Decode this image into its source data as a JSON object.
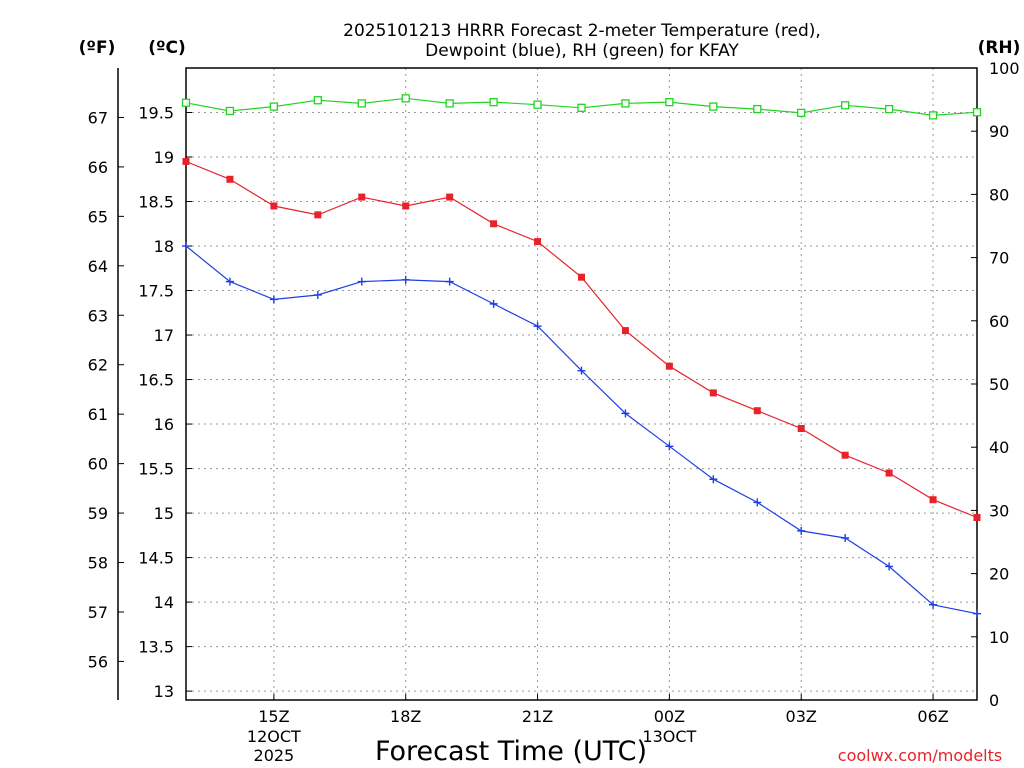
{
  "chart_data": {
    "type": "line",
    "title_lines": [
      "2025101213 HRRR Forecast 2-meter Temperature (red),",
      "Dewpoint (blue), RH (green) for KFAY"
    ],
    "xlabel": "Forecast Time (UTC)",
    "credit": "coolwx.com/modelts",
    "units": {
      "fahrenheit": "(ºF)",
      "celsius": "(ºC)",
      "rh": "(RH)"
    },
    "x_hours": [
      13,
      14,
      15,
      16,
      17,
      18,
      19,
      20,
      21,
      22,
      23,
      24,
      25,
      26,
      27,
      28,
      29,
      30,
      31
    ],
    "xlim": [
      13,
      31
    ],
    "x_ticks": [
      {
        "hour": 15,
        "label": "15Z",
        "line2": "12OCT",
        "line3": "2025"
      },
      {
        "hour": 18,
        "label": "18Z",
        "line2": "",
        "line3": ""
      },
      {
        "hour": 21,
        "label": "21Z",
        "line2": "",
        "line3": ""
      },
      {
        "hour": 24,
        "label": "00Z",
        "line2": "13OCT",
        "line3": ""
      },
      {
        "hour": 27,
        "label": "03Z",
        "line2": "",
        "line3": ""
      },
      {
        "hour": 30,
        "label": "06Z",
        "line2": "",
        "line3": ""
      }
    ],
    "celsius_axis": {
      "ylim": [
        12.9,
        20.0
      ],
      "ticks": [
        13,
        13.5,
        14,
        14.5,
        15,
        15.5,
        16,
        16.5,
        17,
        17.5,
        18,
        18.5,
        19,
        19.5
      ]
    },
    "fahrenheit_ticks": [
      56,
      57,
      58,
      59,
      60,
      61,
      62,
      63,
      64,
      65,
      66,
      67
    ],
    "rh_axis": {
      "ylim": [
        0,
        100
      ],
      "ticks": [
        0,
        10,
        20,
        30,
        40,
        50,
        60,
        70,
        80,
        90,
        100
      ]
    },
    "series": [
      {
        "name": "Temperature",
        "axis": "celsius",
        "color": "#e8222b",
        "marker": "filled-square",
        "values": [
          18.95,
          18.75,
          18.45,
          18.35,
          18.55,
          18.45,
          18.55,
          18.25,
          18.05,
          17.65,
          17.05,
          16.65,
          16.35,
          16.15,
          15.95,
          15.65,
          15.45,
          15.15,
          14.95
        ]
      },
      {
        "name": "Dewpoint",
        "axis": "celsius",
        "color": "#1e3ee8",
        "marker": "plus",
        "values": [
          18.0,
          17.6,
          17.4,
          17.45,
          17.6,
          17.62,
          17.6,
          17.35,
          17.1,
          16.6,
          16.12,
          15.75,
          15.38,
          15.12,
          14.8,
          14.72,
          14.4,
          13.97,
          13.87
        ]
      },
      {
        "name": "RH",
        "axis": "rh",
        "color": "#22d422",
        "marker": "open-square",
        "values": [
          94.5,
          93.2,
          93.9,
          94.9,
          94.4,
          95.2,
          94.4,
          94.6,
          94.2,
          93.7,
          94.4,
          94.6,
          93.9,
          93.5,
          92.9,
          94.1,
          93.5,
          92.5,
          93.0
        ]
      }
    ]
  }
}
